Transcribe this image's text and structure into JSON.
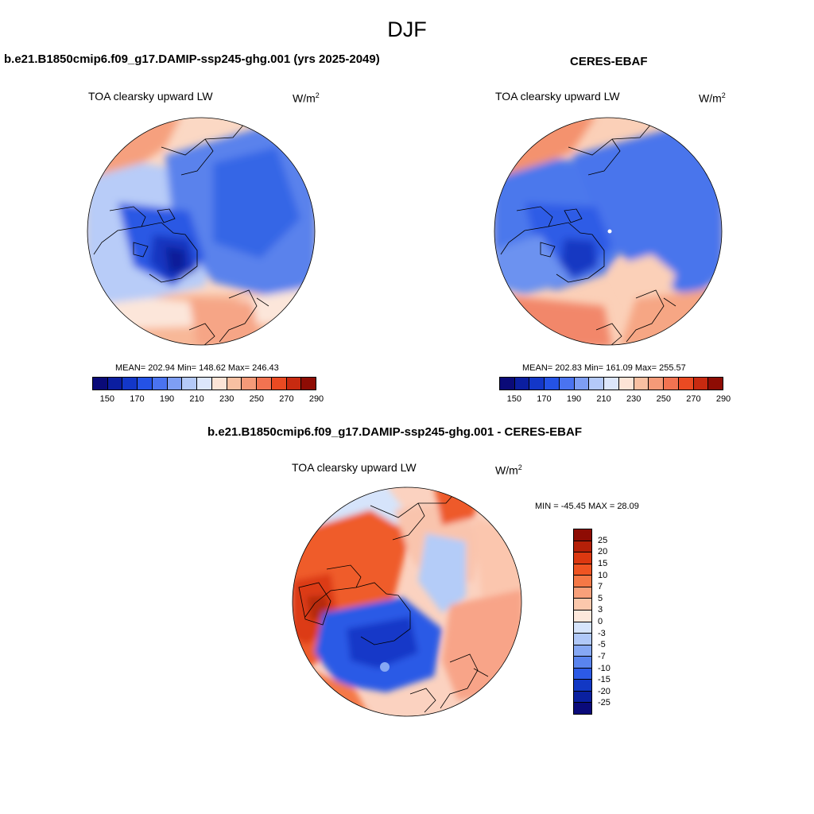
{
  "figure": {
    "season": "DJF"
  },
  "panels": [
    {
      "id": "model",
      "title": "b.e21.B1850cmip6.f09_g17.DAMIP-ssp245-ghg.001 (yrs 2025-2049)",
      "variable": "TOA clearsky upward LW",
      "unit_base": "W/m",
      "unit_exp": "2",
      "stats": "MEAN= 202.94  Min= 148.62  Max= 246.43"
    },
    {
      "id": "obs",
      "title": "CERES-EBAF",
      "variable": "TOA clearsky upward LW",
      "unit_base": "W/m",
      "unit_exp": "2",
      "stats": "MEAN= 202.83  Min= 161.09  Max= 255.57"
    },
    {
      "id": "diff",
      "title": "b.e21.B1850cmip6.f09_g17.DAMIP-ssp245-ghg.001 - CERES-EBAF",
      "variable": "TOA clearsky upward LW",
      "unit_base": "W/m",
      "unit_exp": "2",
      "stats": "MIN = -45.45 MAX =  28.09"
    }
  ],
  "colorbar_abs": {
    "colors": [
      "#0a0a78",
      "#0b1ea0",
      "#1337c8",
      "#2452e6",
      "#4a73f0",
      "#7e9ef4",
      "#b4c9f8",
      "#dce6fb",
      "#fce4d6",
      "#f8c0a2",
      "#f59a78",
      "#f27351",
      "#ea4a22",
      "#c82a10",
      "#8e0c04"
    ],
    "tick_labels": [
      "150",
      "170",
      "190",
      "210",
      "230",
      "250",
      "270",
      "290"
    ]
  },
  "colorbar_diff": {
    "colors": [
      "#8e0c04",
      "#b52008",
      "#dc3810",
      "#ef5422",
      "#f57846",
      "#f8a07a",
      "#fbc8ac",
      "#fde8dc",
      "#d6e4fb",
      "#b0c8f8",
      "#86a8f4",
      "#5a84ee",
      "#2c5ae6",
      "#1238c4",
      "#0a20a0",
      "#0a0a7a"
    ],
    "tick_labels": [
      "25",
      "20",
      "15",
      "10",
      "7",
      "5",
      "3",
      "0",
      "-3",
      "-5",
      "-7",
      "-10",
      "-15",
      "-20",
      "-25"
    ]
  }
}
